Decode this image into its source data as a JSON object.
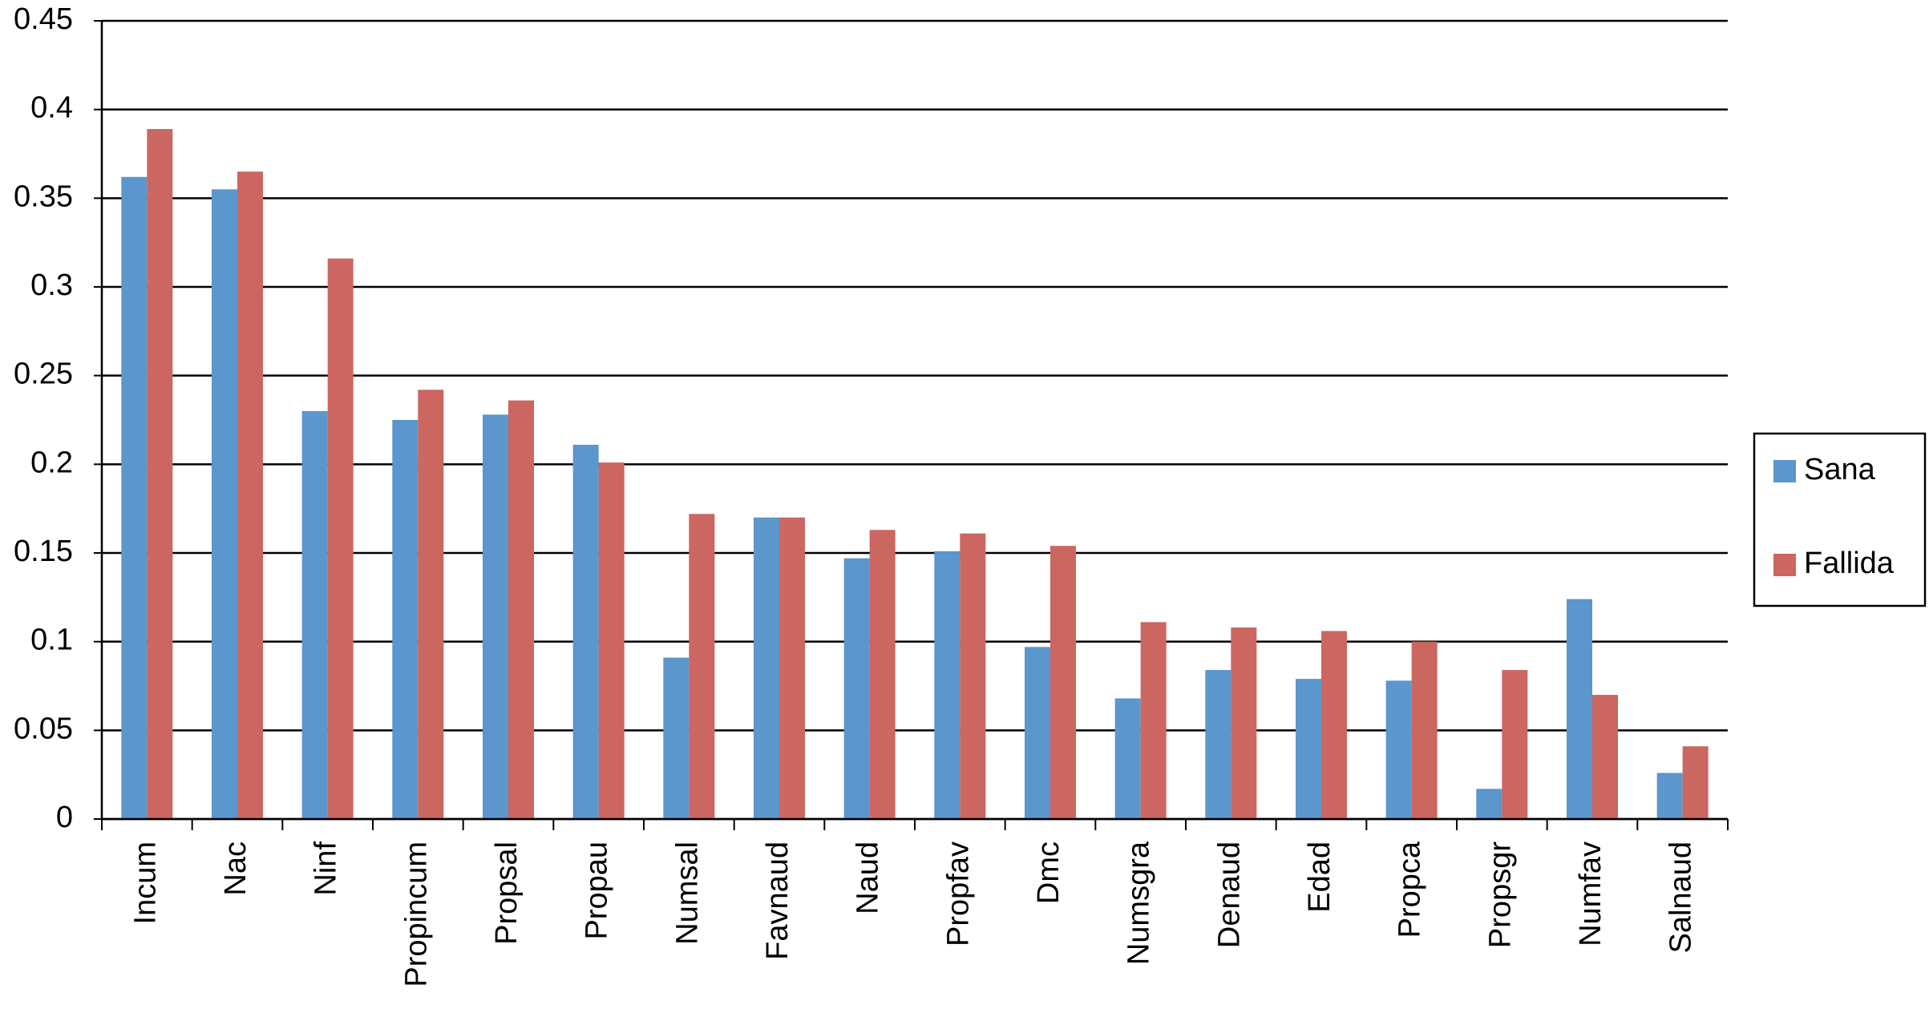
{
  "chart_data": {
    "type": "bar",
    "categories": [
      "Incum",
      "Nac",
      "Ninf",
      "Propincum",
      "Propsal",
      "Propau",
      "Numsal",
      "Favnaud",
      "Naud",
      "Propfav",
      "Dmc",
      "Numsgra",
      "Denaud",
      "Edad",
      "Propca",
      "Propsgr",
      "Numfav",
      "Salnaud"
    ],
    "series": [
      {
        "name": "Sana",
        "color": "#5b96cc",
        "values": [
          0.362,
          0.355,
          0.23,
          0.225,
          0.228,
          0.211,
          0.091,
          0.17,
          0.147,
          0.151,
          0.097,
          0.068,
          0.084,
          0.079,
          0.078,
          0.017,
          0.124,
          0.026
        ]
      },
      {
        "name": "Fallida",
        "color": "#cc6661",
        "values": [
          0.389,
          0.365,
          0.316,
          0.242,
          0.236,
          0.201,
          0.172,
          0.17,
          0.163,
          0.161,
          0.154,
          0.111,
          0.108,
          0.106,
          0.1,
          0.084,
          0.07,
          0.041
        ]
      }
    ],
    "ylim": [
      0,
      0.45
    ],
    "yticks": [
      0,
      0.05,
      0.1,
      0.15,
      0.2,
      0.25,
      0.3,
      0.35,
      0.4,
      0.45
    ],
    "grid": true,
    "legend": "right"
  }
}
